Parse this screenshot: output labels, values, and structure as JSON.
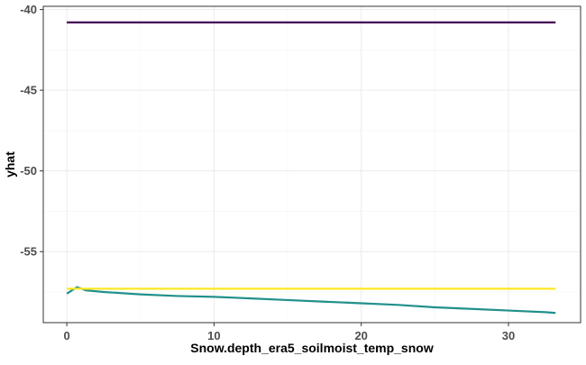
{
  "chart_data": {
    "type": "line",
    "title": "",
    "xlabel": "Snow.depth_era5_soilmoist_temp_snow",
    "ylabel": "yhat",
    "xlim": [
      -1.6,
      34.9
    ],
    "ylim": [
      -59.4,
      -39.8
    ],
    "x_ticks": [
      0,
      10,
      20,
      30
    ],
    "y_ticks": [
      -40,
      -45,
      -50,
      -55
    ],
    "grid": true,
    "legend": "none",
    "series": [
      {
        "color": "#440154",
        "x": [
          0,
          33.2
        ],
        "y": [
          -40.8,
          -40.8
        ]
      },
      {
        "color": "#21908C",
        "x": [
          0,
          0.7,
          1.3,
          2.5,
          5,
          7.5,
          10,
          12.5,
          15,
          17.5,
          20,
          22.5,
          25,
          27.5,
          30,
          32.5,
          33.2
        ],
        "y": [
          -57.6,
          -57.2,
          -57.4,
          -57.5,
          -57.65,
          -57.75,
          -57.8,
          -57.9,
          -58.0,
          -58.1,
          -58.2,
          -58.3,
          -58.45,
          -58.55,
          -58.65,
          -58.75,
          -58.8
        ]
      },
      {
        "color": "#FDE725",
        "x": [
          0,
          33.2
        ],
        "y": [
          -57.3,
          -57.3
        ]
      }
    ]
  }
}
